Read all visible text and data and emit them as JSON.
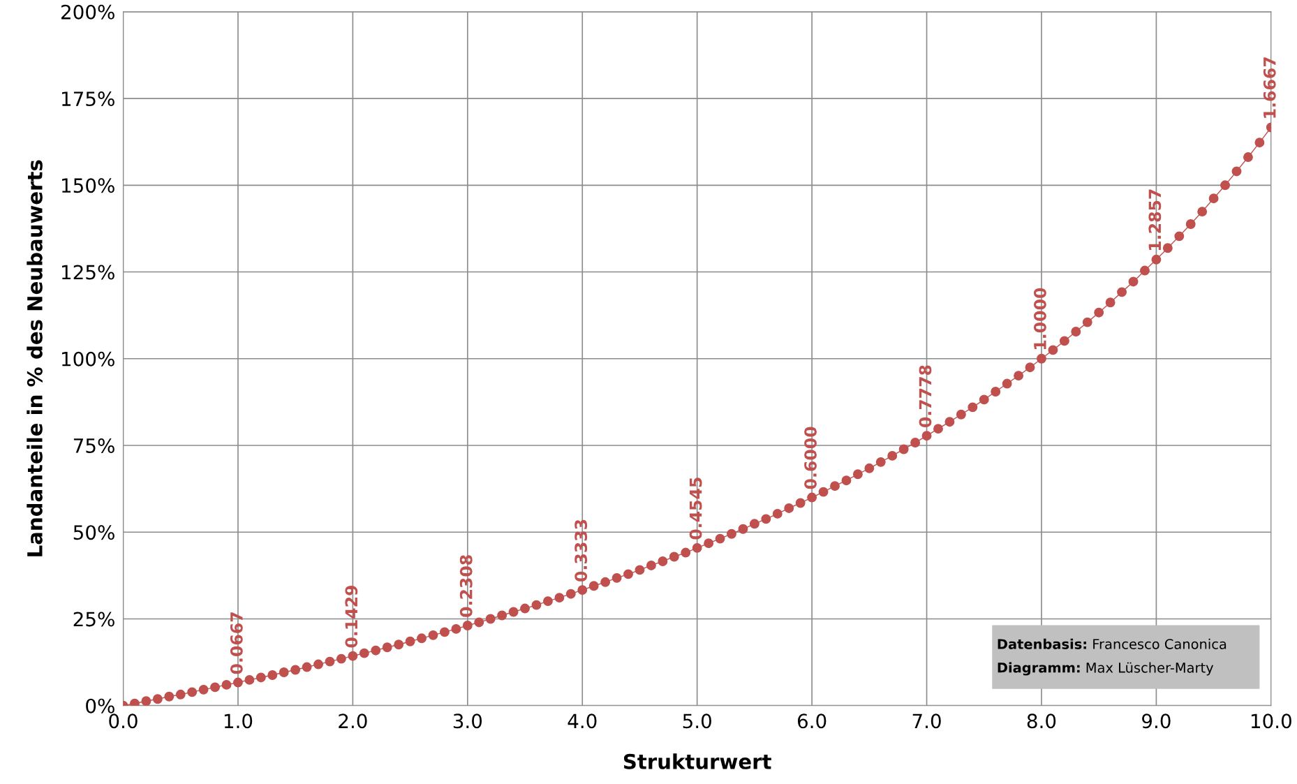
{
  "chart_data": {
    "type": "line",
    "xlabel": "Strukturwert",
    "ylabel": "Landanteile in % des Neubauwerts",
    "x": [
      0,
      0.1,
      0.2,
      0.3,
      0.4,
      0.5,
      0.6,
      0.7,
      0.8,
      0.9,
      1.0,
      1.1,
      1.2,
      1.3,
      1.4,
      1.5,
      1.6,
      1.7,
      1.8,
      1.9,
      2.0,
      2.1,
      2.2,
      2.3,
      2.4,
      2.5,
      2.6,
      2.7,
      2.8,
      2.9,
      3.0,
      3.1,
      3.2,
      3.3,
      3.4,
      3.5,
      3.6,
      3.7,
      3.8,
      3.9,
      4.0,
      4.1,
      4.2,
      4.3,
      4.4,
      4.5,
      4.6,
      4.7,
      4.8,
      4.9,
      5.0,
      5.1,
      5.2,
      5.3,
      5.4,
      5.5,
      5.6,
      5.7,
      5.8,
      5.9,
      6.0,
      6.1,
      6.2,
      6.3,
      6.4,
      6.5,
      6.6,
      6.7,
      6.8,
      6.9,
      7.0,
      7.1,
      7.2,
      7.3,
      7.4,
      7.5,
      7.6,
      7.7,
      7.8,
      7.9,
      8.0,
      8.1,
      8.2,
      8.3,
      8.4,
      8.5,
      8.6,
      8.7,
      8.8,
      8.9,
      9.0,
      9.1,
      9.2,
      9.3,
      9.4,
      9.5,
      9.6,
      9.7,
      9.8,
      9.9,
      10.0
    ],
    "series": [
      {
        "color": "#c0504d",
        "values": [
          0,
          0.006,
          0.013,
          0.019,
          0.026,
          0.032,
          0.039,
          0.046,
          0.053,
          0.06,
          0.0667,
          0.074,
          0.081,
          0.088,
          0.096,
          0.103,
          0.111,
          0.119,
          0.127,
          0.135,
          0.1429,
          0.151,
          0.159,
          0.168,
          0.176,
          0.185,
          0.194,
          0.203,
          0.212,
          0.221,
          0.2308,
          0.24,
          0.25,
          0.26,
          0.27,
          0.28,
          0.29,
          0.301,
          0.311,
          0.322,
          0.3333,
          0.345,
          0.356,
          0.368,
          0.379,
          0.391,
          0.404,
          0.416,
          0.429,
          0.441,
          0.4545,
          0.468,
          0.481,
          0.495,
          0.509,
          0.524,
          0.538,
          0.553,
          0.569,
          0.584,
          0.6,
          0.616,
          0.633,
          0.649,
          0.667,
          0.684,
          0.702,
          0.72,
          0.739,
          0.758,
          0.7778,
          0.798,
          0.818,
          0.839,
          0.86,
          0.882,
          0.905,
          0.928,
          0.951,
          0.975,
          1.0,
          1.025,
          1.051,
          1.078,
          1.105,
          1.133,
          1.162,
          1.192,
          1.222,
          1.254,
          1.2857,
          1.319,
          1.353,
          1.388,
          1.424,
          1.462,
          1.5,
          1.54,
          1.581,
          1.623,
          1.6667
        ],
        "value_labels": [
          null,
          null,
          null,
          null,
          null,
          null,
          null,
          null,
          null,
          null,
          "0.0667",
          null,
          null,
          null,
          null,
          null,
          null,
          null,
          null,
          null,
          "0.1429",
          null,
          null,
          null,
          null,
          null,
          null,
          null,
          null,
          null,
          "0.2308",
          null,
          null,
          null,
          null,
          null,
          null,
          null,
          null,
          null,
          "0.3333",
          null,
          null,
          null,
          null,
          null,
          null,
          null,
          null,
          null,
          "0.4545",
          null,
          null,
          null,
          null,
          null,
          null,
          null,
          null,
          null,
          "0.6000",
          null,
          null,
          null,
          null,
          null,
          null,
          null,
          null,
          null,
          "0.7778",
          null,
          null,
          null,
          null,
          null,
          null,
          null,
          null,
          null,
          "1.0000",
          null,
          null,
          null,
          null,
          null,
          null,
          null,
          null,
          null,
          "1.2857",
          null,
          null,
          null,
          null,
          null,
          null,
          null,
          null,
          null,
          "1.6667"
        ]
      }
    ],
    "xlim": [
      0,
      10
    ],
    "ylim": [
      0,
      2
    ],
    "xticks": [
      {
        "value": 0,
        "label": "0.0"
      },
      {
        "value": 1,
        "label": "1.0"
      },
      {
        "value": 2,
        "label": "2.0"
      },
      {
        "value": 3,
        "label": "3.0"
      },
      {
        "value": 4,
        "label": "4.0"
      },
      {
        "value": 5,
        "label": "5.0"
      },
      {
        "value": 6,
        "label": "6.0"
      },
      {
        "value": 7,
        "label": "7.0"
      },
      {
        "value": 8,
        "label": "8.0"
      },
      {
        "value": 9,
        "label": "9.0"
      },
      {
        "value": 10,
        "label": "10.0"
      }
    ],
    "yticks": [
      {
        "value": 0,
        "label": "0%"
      },
      {
        "value": 0.25,
        "label": "25%"
      },
      {
        "value": 0.5,
        "label": "50%"
      },
      {
        "value": 0.75,
        "label": "75%"
      },
      {
        "value": 1,
        "label": "100%"
      },
      {
        "value": 1.25,
        "label": "125%"
      },
      {
        "value": 1.5,
        "label": "150%"
      },
      {
        "value": 1.75,
        "label": "175%"
      },
      {
        "value": 2,
        "label": "200%"
      }
    ],
    "grid": true,
    "marker": "circle",
    "line_style": "solid",
    "legend": false,
    "annotations": [
      "Datenbasis: Francesco Canonica",
      "Diagramm: Max Lüscher-Marty"
    ]
  }
}
